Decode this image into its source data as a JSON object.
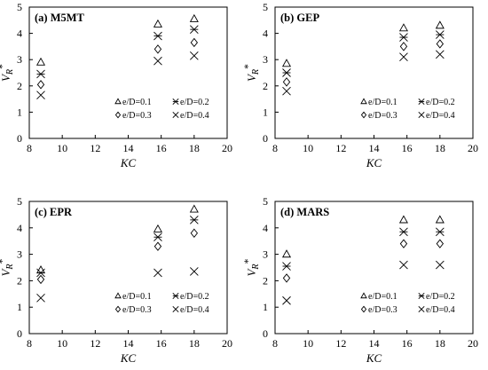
{
  "chart_data": [
    {
      "type": "scatter",
      "title": "(a) M5MT",
      "xlabel": "KC",
      "ylabel": "V_R*",
      "xlim": [
        8,
        20
      ],
      "ylim": [
        0,
        5
      ],
      "xticks": [
        8,
        10,
        12,
        14,
        16,
        18,
        20
      ],
      "yticks": [
        0,
        1,
        2,
        3,
        4,
        5
      ],
      "legend_position": "bottom-right",
      "series": [
        {
          "name": "e/D=0.1",
          "marker": "triangle",
          "x": [
            8.7,
            15.8,
            18.0
          ],
          "y": [
            2.9,
            4.35,
            4.55
          ]
        },
        {
          "name": "e/D=0.2",
          "marker": "asterisk",
          "x": [
            8.7,
            15.8,
            18.0
          ],
          "y": [
            2.45,
            3.9,
            4.15
          ]
        },
        {
          "name": "e/D=0.3",
          "marker": "diamond",
          "x": [
            8.7,
            15.8,
            18.0
          ],
          "y": [
            2.05,
            3.4,
            3.65
          ]
        },
        {
          "name": "e/D=0.4",
          "marker": "x",
          "x": [
            8.7,
            15.8,
            18.0
          ],
          "y": [
            1.65,
            2.95,
            3.15
          ]
        }
      ]
    },
    {
      "type": "scatter",
      "title": "(b) GEP",
      "xlabel": "KC",
      "ylabel": "V_R*",
      "xlim": [
        8,
        20
      ],
      "ylim": [
        0,
        5
      ],
      "xticks": [
        8,
        10,
        12,
        14,
        16,
        18,
        20
      ],
      "yticks": [
        0,
        1,
        2,
        3,
        4,
        5
      ],
      "legend_position": "bottom-right",
      "series": [
        {
          "name": "e/D=0.1",
          "marker": "triangle",
          "x": [
            8.7,
            15.8,
            18.0
          ],
          "y": [
            2.85,
            4.2,
            4.3
          ]
        },
        {
          "name": "e/D=0.2",
          "marker": "asterisk",
          "x": [
            8.7,
            15.8,
            18.0
          ],
          "y": [
            2.5,
            3.85,
            3.95
          ]
        },
        {
          "name": "e/D=0.3",
          "marker": "diamond",
          "x": [
            8.7,
            15.8,
            18.0
          ],
          "y": [
            2.15,
            3.5,
            3.6
          ]
        },
        {
          "name": "e/D=0.4",
          "marker": "x",
          "x": [
            8.7,
            15.8,
            18.0
          ],
          "y": [
            1.8,
            3.1,
            3.2
          ]
        }
      ]
    },
    {
      "type": "scatter",
      "title": "(c) EPR",
      "xlabel": "KC",
      "ylabel": "V_R*",
      "xlim": [
        8,
        20
      ],
      "ylim": [
        0,
        5
      ],
      "xticks": [
        8,
        10,
        12,
        14,
        16,
        18,
        20
      ],
      "yticks": [
        0,
        1,
        2,
        3,
        4,
        5
      ],
      "legend_position": "bottom-right",
      "series": [
        {
          "name": "e/D=0.1",
          "marker": "triangle",
          "x": [
            8.7,
            15.8,
            18.0
          ],
          "y": [
            2.4,
            3.95,
            4.7
          ]
        },
        {
          "name": "e/D=0.2",
          "marker": "asterisk",
          "x": [
            8.7,
            15.8,
            18.0
          ],
          "y": [
            2.3,
            3.65,
            4.3
          ]
        },
        {
          "name": "e/D=0.3",
          "marker": "diamond",
          "x": [
            8.7,
            15.8,
            18.0
          ],
          "y": [
            2.05,
            3.3,
            3.8
          ]
        },
        {
          "name": "e/D=0.4",
          "marker": "x",
          "x": [
            8.7,
            15.8,
            18.0
          ],
          "y": [
            1.35,
            2.3,
            2.35
          ]
        }
      ]
    },
    {
      "type": "scatter",
      "title": "(d) MARS",
      "xlabel": "KC",
      "ylabel": "V_R*",
      "xlim": [
        8,
        20
      ],
      "ylim": [
        0,
        5
      ],
      "xticks": [
        8,
        10,
        12,
        14,
        16,
        18,
        20
      ],
      "yticks": [
        0,
        1,
        2,
        3,
        4,
        5
      ],
      "legend_position": "bottom-right",
      "series": [
        {
          "name": "e/D=0.1",
          "marker": "triangle",
          "x": [
            8.7,
            15.8,
            18.0
          ],
          "y": [
            3.0,
            4.3,
            4.3
          ]
        },
        {
          "name": "e/D=0.2",
          "marker": "asterisk",
          "x": [
            8.7,
            15.8,
            18.0
          ],
          "y": [
            2.55,
            3.85,
            3.85
          ]
        },
        {
          "name": "e/D=0.3",
          "marker": "diamond",
          "x": [
            8.7,
            15.8,
            18.0
          ],
          "y": [
            2.1,
            3.4,
            3.4
          ]
        },
        {
          "name": "e/D=0.4",
          "marker": "x",
          "x": [
            8.7,
            15.8,
            18.0
          ],
          "y": [
            1.25,
            2.6,
            2.6
          ]
        }
      ]
    }
  ]
}
